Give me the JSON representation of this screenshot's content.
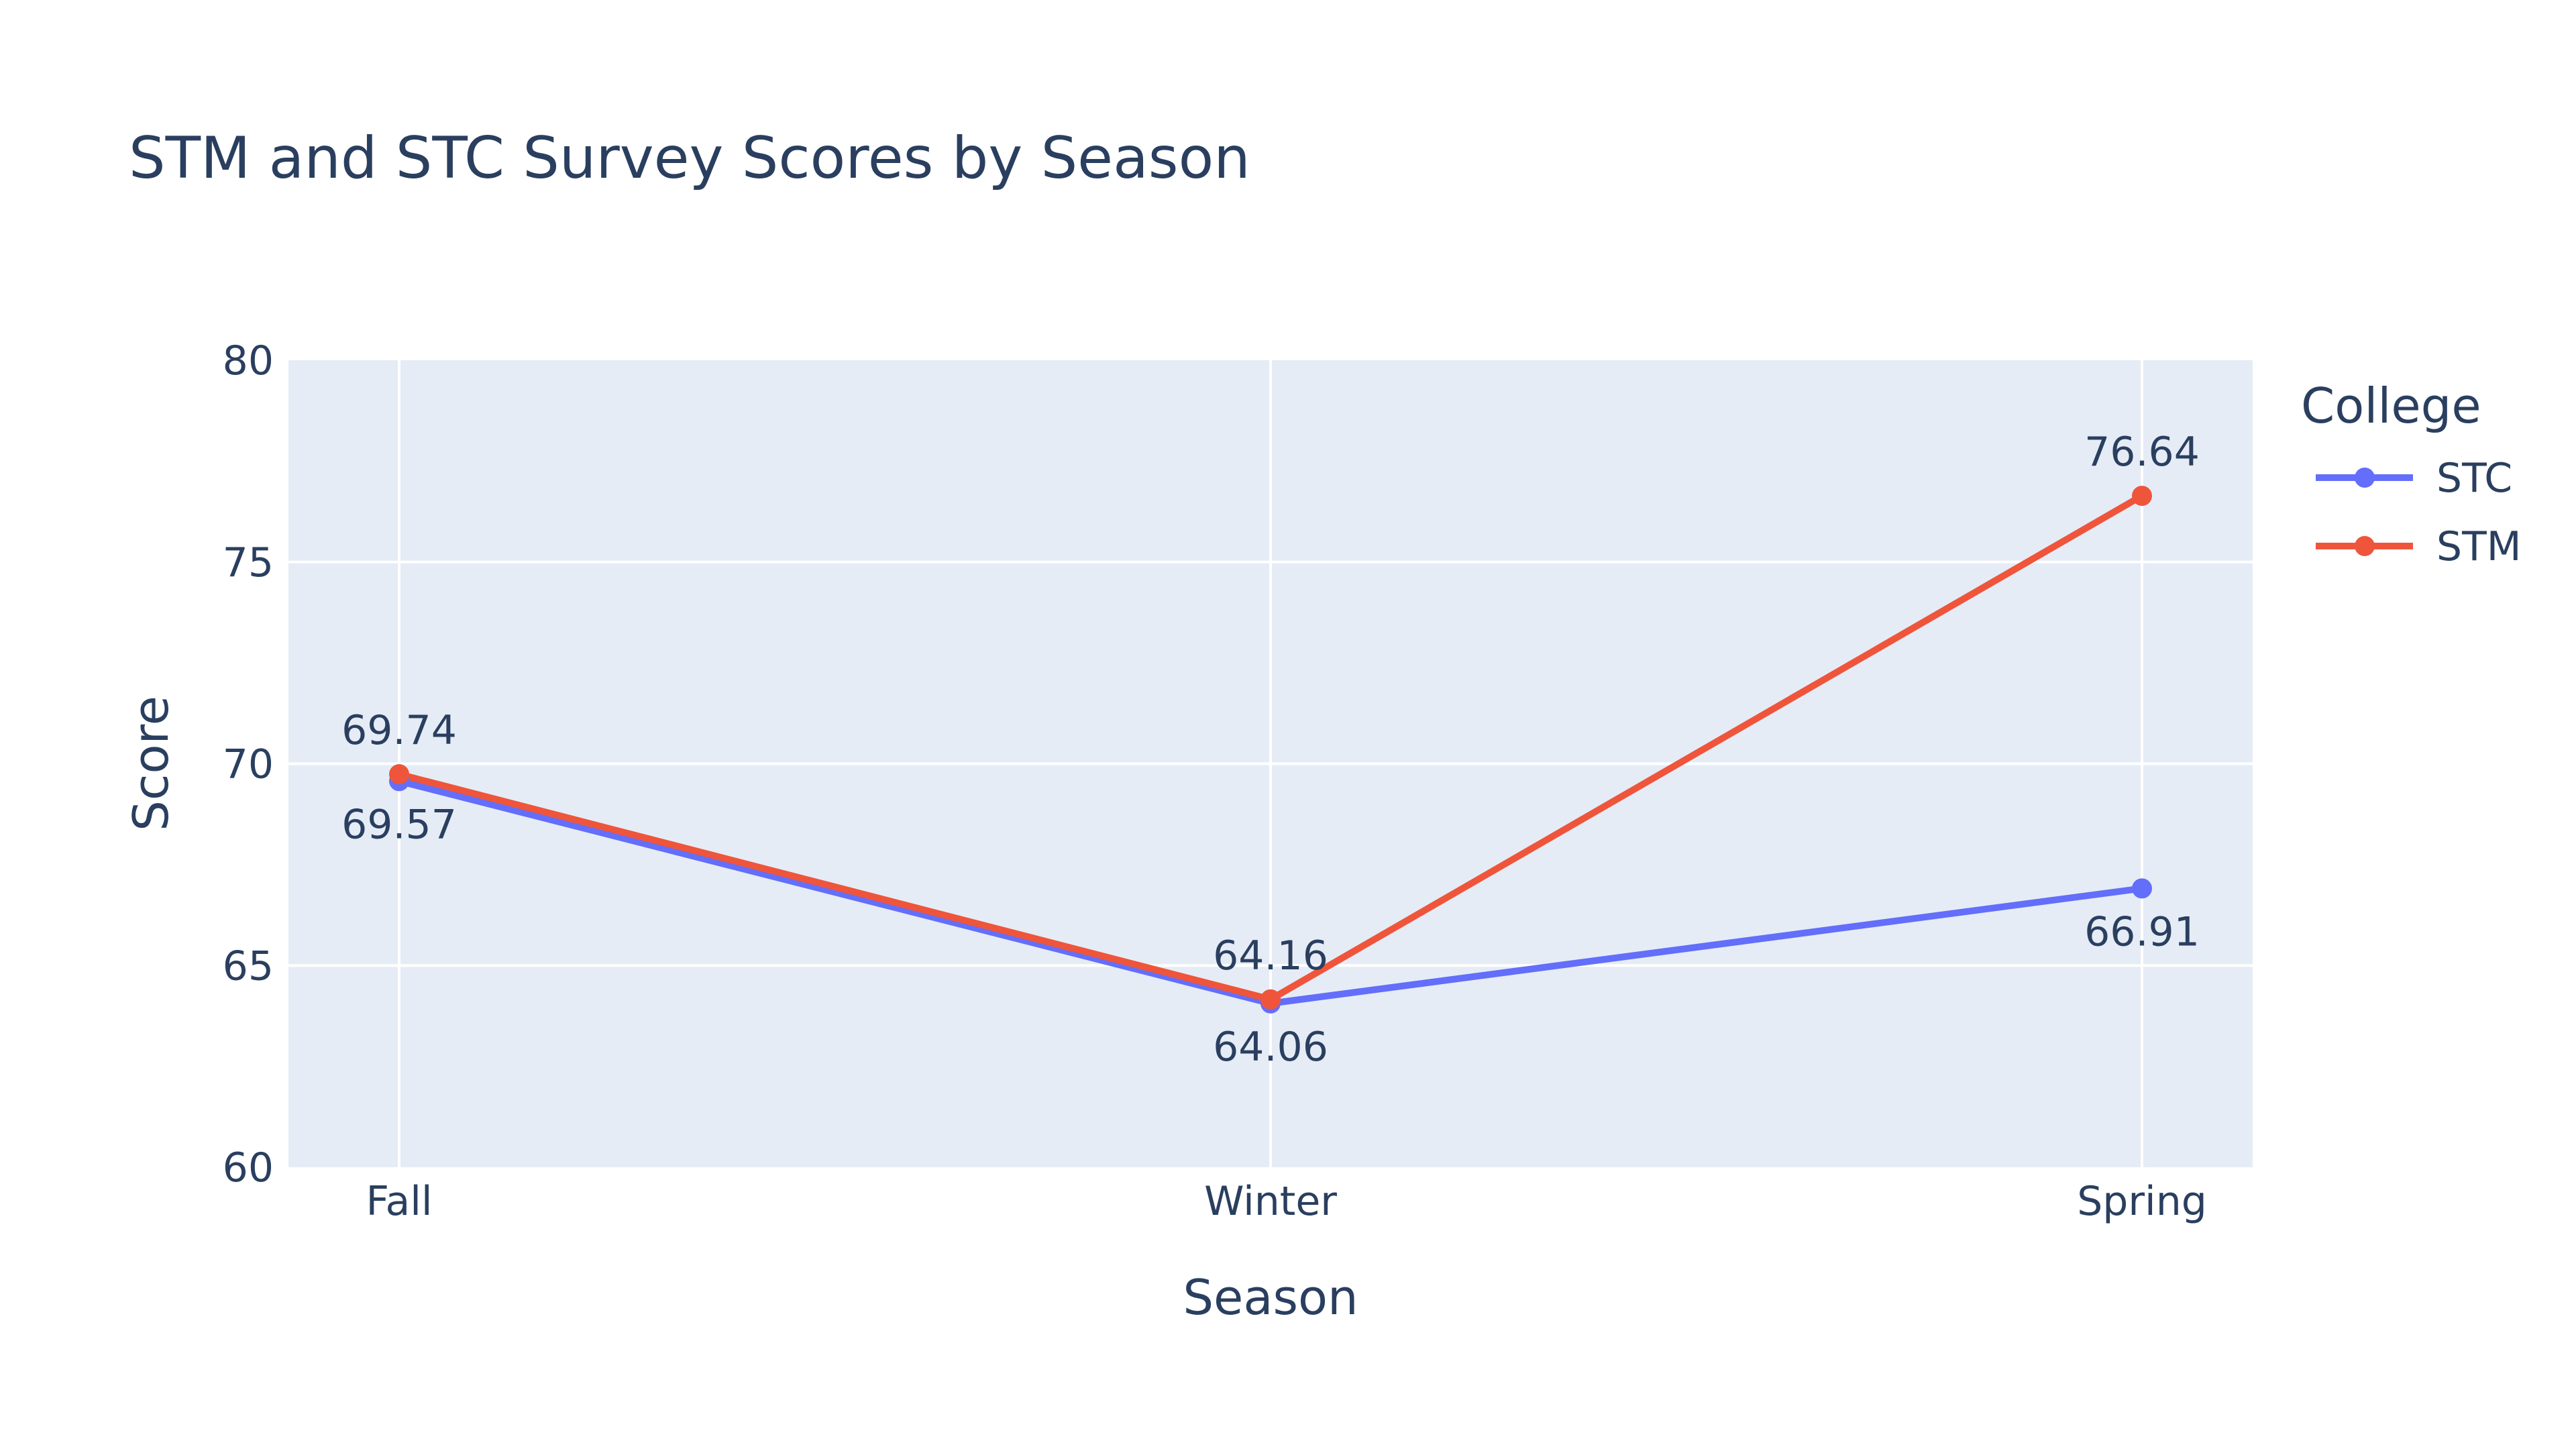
{
  "chart_data": {
    "type": "line",
    "title": "STM and STC Survey Scores by Season",
    "xlabel": "Season",
    "ylabel": "Score",
    "categories": [
      "Fall",
      "Winter",
      "Spring"
    ],
    "ylim": [
      60,
      80
    ],
    "yticks": [
      60,
      65,
      70,
      75,
      80
    ],
    "grid": true,
    "legend": {
      "title": "College",
      "placement": "right"
    },
    "series": [
      {
        "name": "STC",
        "values": [
          69.57,
          64.06,
          66.91
        ],
        "labels": [
          "69.57",
          "64.06",
          "66.91"
        ],
        "label_position": [
          "below",
          "below",
          "below"
        ],
        "color": "#636efa"
      },
      {
        "name": "STM",
        "values": [
          69.74,
          64.16,
          76.64
        ],
        "labels": [
          "69.74",
          "64.16",
          "76.64"
        ],
        "label_position": [
          "above",
          "above",
          "above"
        ],
        "color": "#ef553b"
      }
    ],
    "plot_background": "#e5ecf6",
    "grid_color": "#ffffff"
  }
}
